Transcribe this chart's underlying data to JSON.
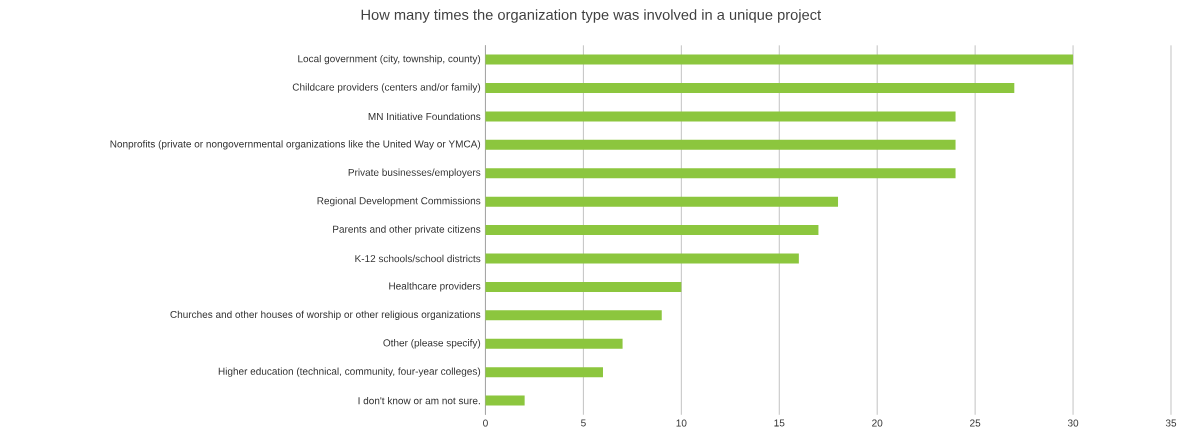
{
  "chart_data": {
    "type": "bar",
    "orientation": "horizontal",
    "title": "How many times the organization type was involved in a unique project",
    "categories": [
      "Local government (city, township, county)",
      "Childcare providers (centers and/or family)",
      "MN Initiative Foundations",
      "Nonprofits (private or nongovernmental organizations like the United Way or YMCA)",
      "Private businesses/employers",
      "Regional Development Commissions",
      "Parents and other private citizens",
      "K-12 schools/school districts",
      "Healthcare providers",
      "Churches and other houses of worship or other religious organizations",
      "Other (please specify)",
      "Higher education (technical, community, four-year colleges)",
      "I don't know or am not sure."
    ],
    "values": [
      30,
      27,
      24,
      24,
      24,
      18,
      17,
      16,
      10,
      9,
      7,
      6,
      2
    ],
    "color": "#8cc63e",
    "xlim": [
      0,
      35
    ],
    "xticks": [
      0,
      5,
      10,
      15,
      20,
      25,
      30,
      35
    ],
    "grid": "x"
  }
}
